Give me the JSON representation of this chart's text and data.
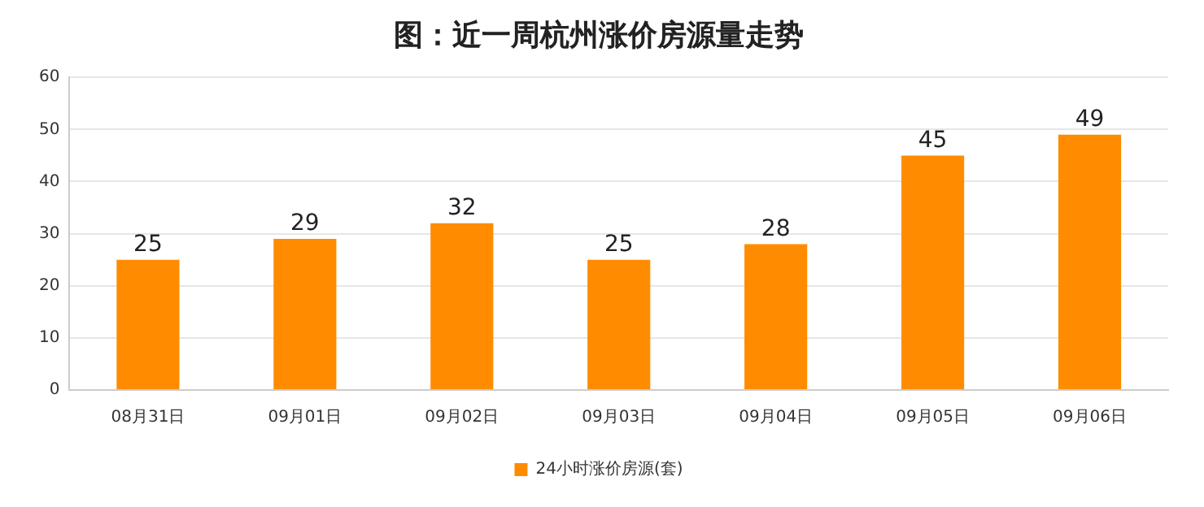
{
  "chart_data": {
    "type": "bar",
    "title": "图：近一周杭州涨价房源量走势",
    "categories": [
      "08月31日",
      "09月01日",
      "09月02日",
      "09月03日",
      "09月04日",
      "09月05日",
      "09月06日"
    ],
    "series": [
      {
        "name": "24小时涨价房源(套)",
        "color": "#ff8c00",
        "values": [
          25,
          29,
          32,
          25,
          28,
          45,
          49
        ]
      }
    ],
    "ylim": [
      0,
      60
    ],
    "yticks": [
      0,
      10,
      20,
      30,
      40,
      50,
      60
    ],
    "grid": "y",
    "legend": "bottom",
    "data_labels": true
  }
}
